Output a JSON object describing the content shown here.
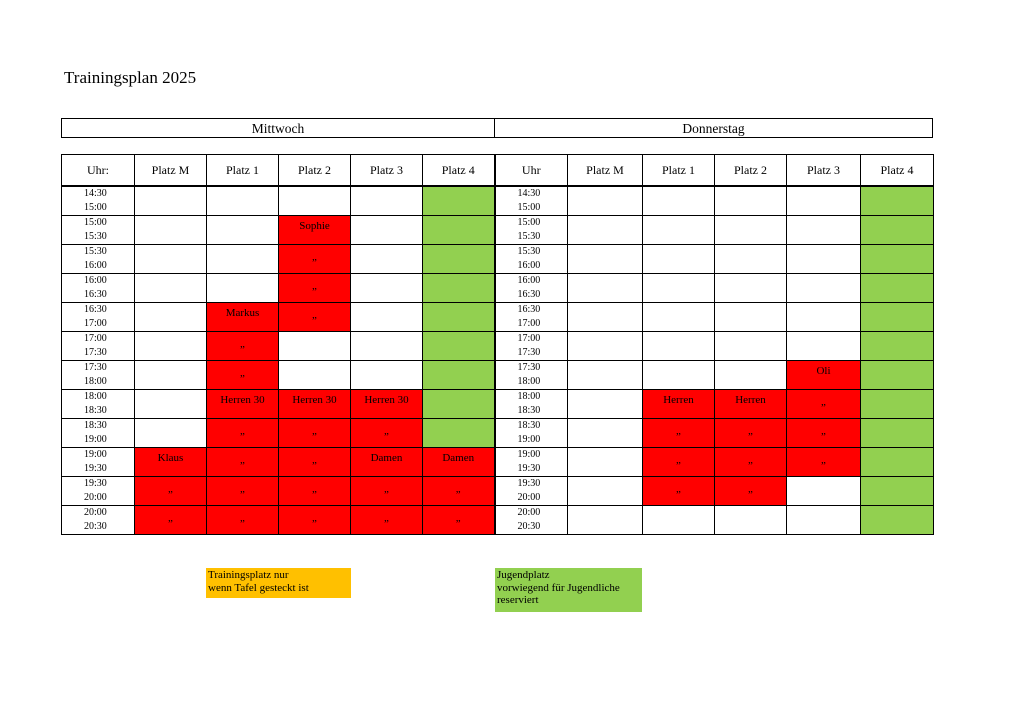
{
  "title": "Trainingsplan 2025",
  "days": [
    "Mittwoch",
    "Donnerstag"
  ],
  "colors": {
    "occupied": "#ff0000",
    "youth": "#92d050",
    "training": "#ffc000"
  },
  "headers": [
    "Uhr:",
    "Platz M",
    "Platz 1",
    "Platz 2",
    "Platz 3",
    "Platz 4",
    "Uhr",
    "Platz M",
    "Platz 1",
    "Platz 2",
    "Platz 3",
    "Platz 4"
  ],
  "rows": [
    {
      "t1": "14:30",
      "t2": "15:00",
      "wed": [
        [
          "",
          ""
        ],
        [
          "",
          ""
        ],
        [
          "",
          ""
        ],
        [
          "",
          ""
        ],
        [
          "",
          "g"
        ]
      ],
      "thu": [
        [
          "",
          ""
        ],
        [
          "",
          ""
        ],
        [
          "",
          ""
        ],
        [
          "",
          ""
        ],
        [
          "",
          "g"
        ]
      ]
    },
    {
      "t1": "15:00",
      "t2": "15:30",
      "wed": [
        [
          "",
          ""
        ],
        [
          "",
          ""
        ],
        [
          "Sophie",
          "r"
        ],
        [
          "",
          ""
        ],
        [
          "",
          "g"
        ]
      ],
      "thu": [
        [
          "",
          ""
        ],
        [
          "",
          ""
        ],
        [
          "",
          ""
        ],
        [
          "",
          ""
        ],
        [
          "",
          "g"
        ]
      ]
    },
    {
      "t1": "15:30",
      "t2": "16:00",
      "wed": [
        [
          "",
          ""
        ],
        [
          "",
          ""
        ],
        [
          "„",
          "r"
        ],
        [
          "",
          ""
        ],
        [
          "",
          "g"
        ]
      ],
      "thu": [
        [
          "",
          ""
        ],
        [
          "",
          ""
        ],
        [
          "",
          ""
        ],
        [
          "",
          ""
        ],
        [
          "",
          "g"
        ]
      ]
    },
    {
      "t1": "16:00",
      "t2": "16:30",
      "wed": [
        [
          "",
          ""
        ],
        [
          "",
          ""
        ],
        [
          "„",
          "r"
        ],
        [
          "",
          ""
        ],
        [
          "",
          "g"
        ]
      ],
      "thu": [
        [
          "",
          ""
        ],
        [
          "",
          ""
        ],
        [
          "",
          ""
        ],
        [
          "",
          ""
        ],
        [
          "",
          "g"
        ]
      ]
    },
    {
      "t1": "16:30",
      "t2": "17:00",
      "wed": [
        [
          "",
          ""
        ],
        [
          "Markus",
          "r"
        ],
        [
          "„",
          "r"
        ],
        [
          "",
          ""
        ],
        [
          "",
          "g"
        ]
      ],
      "thu": [
        [
          "",
          ""
        ],
        [
          "",
          ""
        ],
        [
          "",
          ""
        ],
        [
          "",
          ""
        ],
        [
          "",
          "g"
        ]
      ]
    },
    {
      "t1": "17:00",
      "t2": "17:30",
      "wed": [
        [
          "",
          ""
        ],
        [
          "„",
          "r"
        ],
        [
          "",
          ""
        ],
        [
          "",
          ""
        ],
        [
          "",
          "g"
        ]
      ],
      "thu": [
        [
          "",
          ""
        ],
        [
          "",
          ""
        ],
        [
          "",
          ""
        ],
        [
          "",
          ""
        ],
        [
          "",
          "g"
        ]
      ]
    },
    {
      "t1": "17:30",
      "t2": "18:00",
      "wed": [
        [
          "",
          ""
        ],
        [
          "„",
          "r"
        ],
        [
          "",
          ""
        ],
        [
          "",
          ""
        ],
        [
          "",
          "g"
        ]
      ],
      "thu": [
        [
          "",
          ""
        ],
        [
          "",
          ""
        ],
        [
          "",
          ""
        ],
        [
          "Oli",
          "r"
        ],
        [
          "",
          "g"
        ]
      ]
    },
    {
      "t1": "18:00",
      "t2": "18:30",
      "wed": [
        [
          "",
          ""
        ],
        [
          "Herren 30",
          "r"
        ],
        [
          "Herren 30",
          "r"
        ],
        [
          "Herren 30",
          "r"
        ],
        [
          "",
          "g"
        ]
      ],
      "thu": [
        [
          "",
          ""
        ],
        [
          "Herren",
          "r"
        ],
        [
          "Herren",
          "r"
        ],
        [
          "„",
          "r"
        ],
        [
          "",
          "g"
        ]
      ]
    },
    {
      "t1": "18:30",
      "t2": "19:00",
      "wed": [
        [
          "",
          ""
        ],
        [
          "„",
          "r"
        ],
        [
          "„",
          "r"
        ],
        [
          "„",
          "r"
        ],
        [
          "",
          "g"
        ]
      ],
      "thu": [
        [
          "",
          ""
        ],
        [
          "„",
          "r"
        ],
        [
          "„",
          "r"
        ],
        [
          "„",
          "r"
        ],
        [
          "",
          "g"
        ]
      ]
    },
    {
      "t1": "19:00",
      "t2": "19:30",
      "wed": [
        [
          "Klaus",
          "r"
        ],
        [
          "„",
          "r"
        ],
        [
          "„",
          "r"
        ],
        [
          "Damen",
          "r"
        ],
        [
          "Damen",
          "r"
        ]
      ],
      "thu": [
        [
          "",
          ""
        ],
        [
          "„",
          "r"
        ],
        [
          "„",
          "r"
        ],
        [
          "„",
          "r"
        ],
        [
          "",
          "g"
        ]
      ]
    },
    {
      "t1": "19:30",
      "t2": "20:00",
      "wed": [
        [
          "„",
          "r"
        ],
        [
          "„",
          "r"
        ],
        [
          "„",
          "r"
        ],
        [
          "„",
          "r"
        ],
        [
          "„",
          "r"
        ]
      ],
      "thu": [
        [
          "",
          ""
        ],
        [
          "„",
          "r"
        ],
        [
          "„",
          "r"
        ],
        [
          "",
          ""
        ],
        [
          "",
          "g"
        ]
      ]
    },
    {
      "t1": "20:00",
      "t2": "20:30",
      "wed": [
        [
          "„",
          "r"
        ],
        [
          "„",
          "r"
        ],
        [
          "„",
          "r"
        ],
        [
          "„",
          "r"
        ],
        [
          "„",
          "r"
        ]
      ],
      "thu": [
        [
          "",
          ""
        ],
        [
          "",
          ""
        ],
        [
          "",
          ""
        ],
        [
          "",
          ""
        ],
        [
          "",
          "g"
        ]
      ]
    }
  ],
  "legend": {
    "training_line1": "Trainingsplatz nur",
    "training_line2": "wenn Tafel gesteckt ist",
    "youth_line1": "Jugendplatz",
    "youth_line2": "vorwiegend für Jugendliche",
    "youth_line3": "reserviert"
  }
}
